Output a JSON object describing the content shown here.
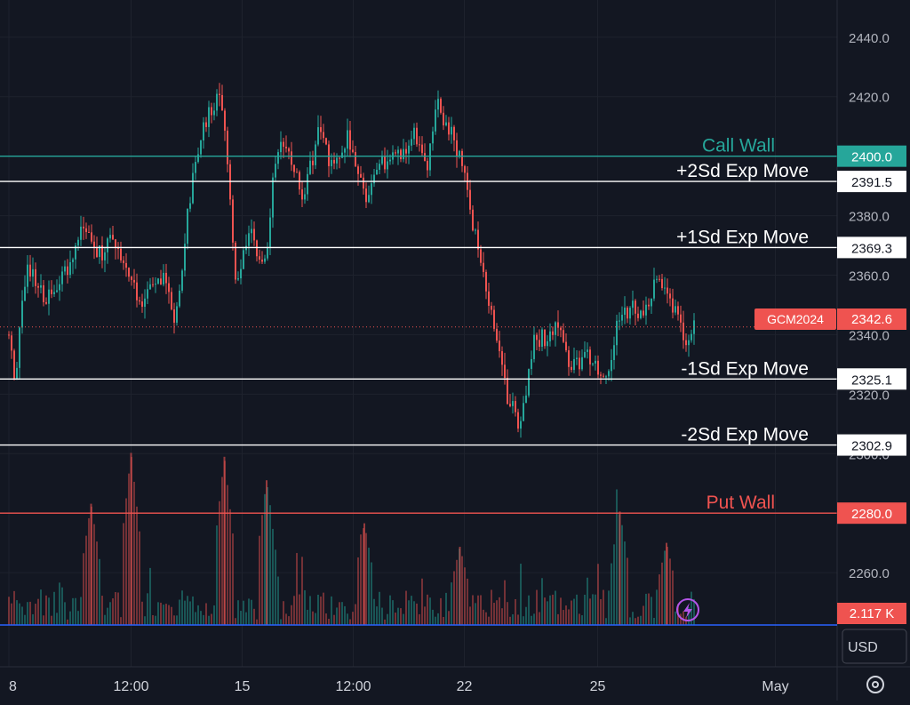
{
  "chart_data": {
    "type": "candlestick",
    "symbol": "GCM2024",
    "last_price": "2342.6",
    "currency": "USD",
    "volume_label": "2.117 K",
    "y_axis": {
      "min": 2242.4,
      "max": 2452.5,
      "ticks": [
        2440,
        2420,
        2400,
        2380,
        2360,
        2340,
        2320,
        2300,
        2280,
        2260
      ],
      "tick_labels": [
        "2440.0",
        "2420.0",
        "2400.0",
        "2380.0",
        "2360.0",
        "2340.0",
        "2320.0",
        "2300.0",
        "2280.0",
        "2260.0"
      ]
    },
    "x_axis": {
      "min": 0,
      "max": 37.7,
      "ticks": [
        {
          "pos": 0,
          "label": "8"
        },
        {
          "pos": 5.5,
          "label": "12:00"
        },
        {
          "pos": 10.5,
          "label": "15"
        },
        {
          "pos": 15.5,
          "label": "12:00"
        },
        {
          "pos": 20.5,
          "label": "22"
        },
        {
          "pos": 26.5,
          "label": "25"
        },
        {
          "pos": 34.5,
          "label": "May"
        }
      ]
    },
    "levels": [
      {
        "name": "Call Wall",
        "value": 2400.0,
        "price_label": "2400.0",
        "color": "#26a69a",
        "label_color": "#26a69a",
        "badge_bg": "#26a69a",
        "badge_text": "#ffffff"
      },
      {
        "name": "+2Sd Exp Move",
        "value": 2391.5,
        "price_label": "2391.5",
        "color": "#ffffff",
        "label_color": "#ffffff",
        "badge_bg": "#ffffff",
        "badge_text": "#131722"
      },
      {
        "name": "+1Sd Exp Move",
        "value": 2369.3,
        "price_label": "2369.3",
        "color": "#ffffff",
        "label_color": "#ffffff",
        "badge_bg": "#ffffff",
        "badge_text": "#131722"
      },
      {
        "name": "-1Sd Exp Move",
        "value": 2325.1,
        "price_label": "2325.1",
        "color": "#ffffff",
        "label_color": "#ffffff",
        "badge_bg": "#ffffff",
        "badge_text": "#131722"
      },
      {
        "name": "-2Sd Exp Move",
        "value": 2302.9,
        "price_label": "2302.9",
        "color": "#ffffff",
        "label_color": "#ffffff",
        "badge_bg": "#ffffff",
        "badge_text": "#131722"
      },
      {
        "name": "Put Wall",
        "value": 2280.0,
        "price_label": "2280.0",
        "color": "#ef5350",
        "label_color": "#ef5350",
        "badge_bg": "#ef5350",
        "badge_text": "#ffffff"
      }
    ],
    "price_path": [
      [
        0.0,
        2340
      ],
      [
        0.3,
        2325
      ],
      [
        0.8,
        2366
      ],
      [
        1.5,
        2352
      ],
      [
        2.2,
        2356
      ],
      [
        2.8,
        2365
      ],
      [
        3.3,
        2380
      ],
      [
        4.0,
        2366
      ],
      [
        4.8,
        2372
      ],
      [
        5.5,
        2356
      ],
      [
        6.0,
        2350
      ],
      [
        7.0,
        2362
      ],
      [
        7.5,
        2345
      ],
      [
        8.0,
        2378
      ],
      [
        8.5,
        2402
      ],
      [
        9.0,
        2415
      ],
      [
        9.5,
        2420
      ],
      [
        9.8,
        2402
      ],
      [
        10.2,
        2356
      ],
      [
        10.8,
        2375
      ],
      [
        11.5,
        2362
      ],
      [
        12.0,
        2400
      ],
      [
        12.5,
        2405
      ],
      [
        13.2,
        2385
      ],
      [
        14.0,
        2410
      ],
      [
        14.5,
        2397
      ],
      [
        15.3,
        2407
      ],
      [
        16.0,
        2385
      ],
      [
        16.8,
        2397
      ],
      [
        17.5,
        2400
      ],
      [
        18.3,
        2409
      ],
      [
        18.8,
        2395
      ],
      [
        19.3,
        2418
      ],
      [
        20.0,
        2405
      ],
      [
        20.6,
        2392
      ],
      [
        21.0,
        2372
      ],
      [
        21.5,
        2355
      ],
      [
        22.0,
        2340
      ],
      [
        22.5,
        2316
      ],
      [
        23.1,
        2310
      ],
      [
        23.6,
        2340
      ],
      [
        24.2,
        2338
      ],
      [
        24.8,
        2342
      ],
      [
        25.3,
        2328
      ],
      [
        26.0,
        2335
      ],
      [
        26.8,
        2322
      ],
      [
        27.4,
        2343
      ],
      [
        28.0,
        2350
      ],
      [
        28.6,
        2348
      ],
      [
        29.2,
        2362
      ],
      [
        29.8,
        2352
      ],
      [
        30.3,
        2342
      ],
      [
        30.6,
        2335
      ],
      [
        30.9,
        2343
      ]
    ],
    "volume_max": 100,
    "volume_spikes": [
      {
        "x": 5.5,
        "h": 88
      },
      {
        "x": 9.7,
        "h": 86
      },
      {
        "x": 11.6,
        "h": 74
      },
      {
        "x": 3.7,
        "h": 62
      },
      {
        "x": 16.0,
        "h": 52
      },
      {
        "x": 27.5,
        "h": 58
      },
      {
        "x": 29.6,
        "h": 42
      },
      {
        "x": 20.3,
        "h": 40
      }
    ]
  }
}
